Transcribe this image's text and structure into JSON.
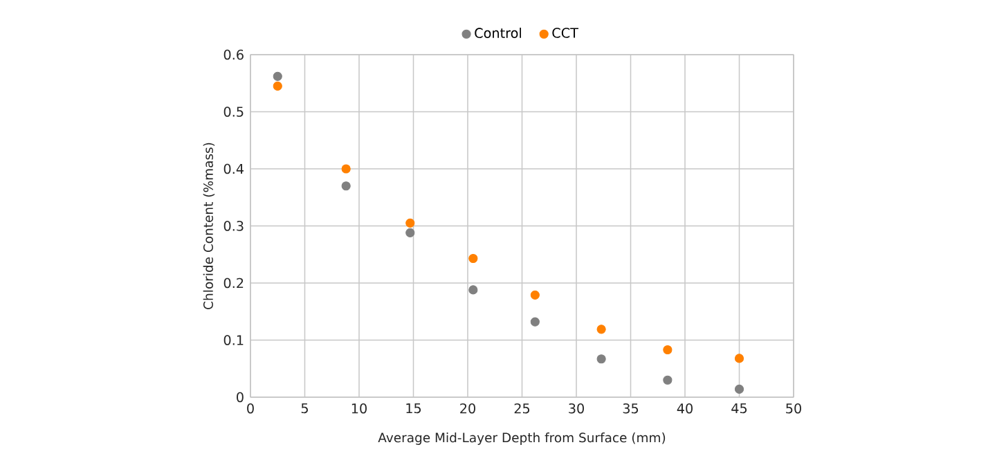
{
  "chart_data": {
    "type": "scatter",
    "xlabel": "Average Mid-Layer Depth from Surface (mm)",
    "ylabel": "Chloride Content (%mass)",
    "x": [
      2.5,
      8.8,
      14.7,
      20.5,
      26.2,
      32.3,
      38.4,
      45.0
    ],
    "series": [
      {
        "name": "Control",
        "color": "#808080",
        "values": [
          0.562,
          0.37,
          0.288,
          0.188,
          0.132,
          0.067,
          0.03,
          0.014
        ]
      },
      {
        "name": "CCT",
        "color": "#ff8000",
        "values": [
          0.545,
          0.4,
          0.305,
          0.243,
          0.179,
          0.119,
          0.083,
          0.068
        ]
      }
    ],
    "xlim": [
      0,
      50
    ],
    "xticks": [
      0,
      5,
      10,
      15,
      20,
      25,
      30,
      35,
      40,
      45,
      50
    ],
    "ylim": [
      0,
      0.6
    ],
    "yticks": [
      0,
      0.1,
      0.2,
      0.3,
      0.4,
      0.5,
      0.6
    ],
    "grid": true,
    "legend": "top",
    "marker": "circle"
  }
}
